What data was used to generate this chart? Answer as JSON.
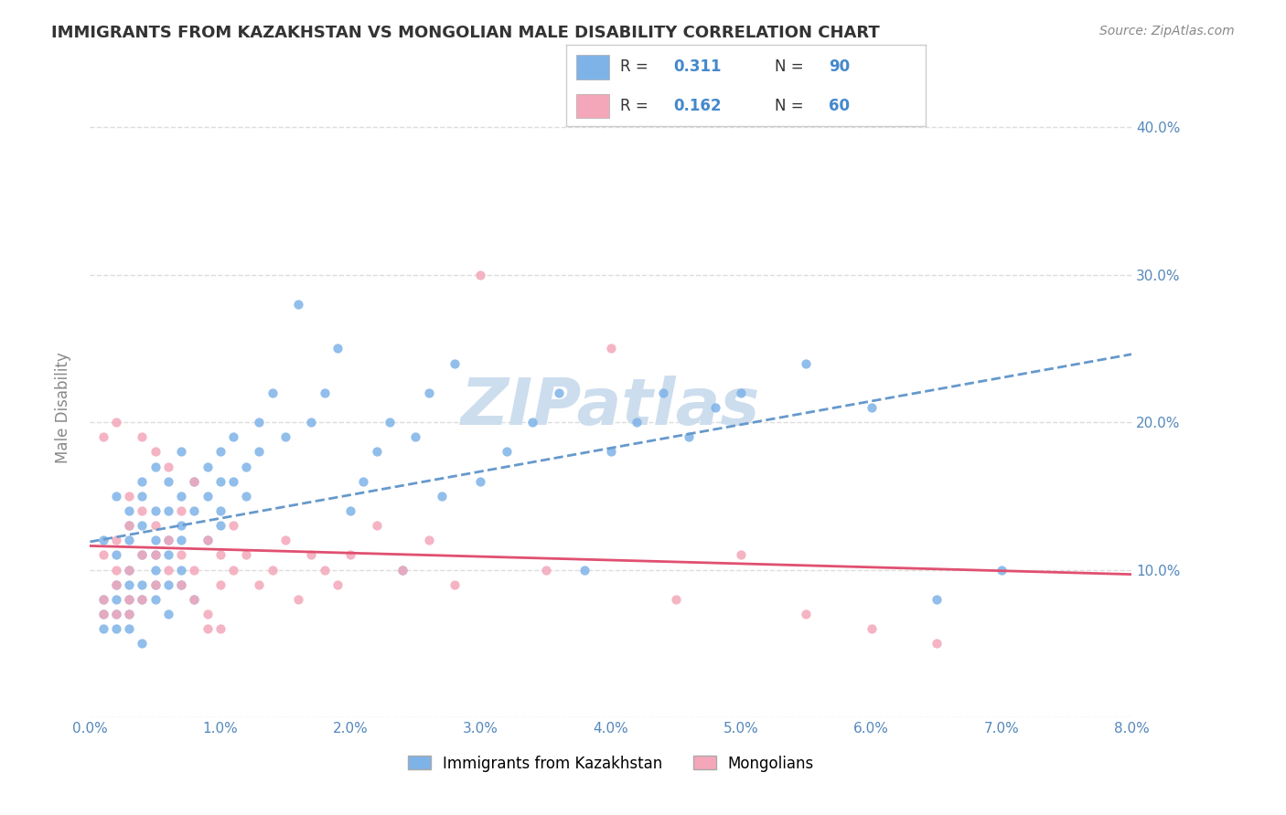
{
  "title": "IMMIGRANTS FROM KAZAKHSTAN VS MONGOLIAN MALE DISABILITY CORRELATION CHART",
  "source_text": "Source: ZipAtlas.com",
  "xlabel_bottom": "",
  "ylabel": "Male Disability",
  "legend_label1": "Immigrants from Kazakhstan",
  "legend_label2": "Mongolians",
  "R1": 0.311,
  "N1": 90,
  "R2": 0.162,
  "N2": 60,
  "xlim": [
    0.0,
    0.08
  ],
  "ylim": [
    0.0,
    0.42
  ],
  "x_ticks": [
    0.0,
    0.01,
    0.02,
    0.03,
    0.04,
    0.05,
    0.06,
    0.07,
    0.08
  ],
  "x_tick_labels": [
    "0.0%",
    "1.0%",
    "2.0%",
    "3.0%",
    "4.0%",
    "5.0%",
    "6.0%",
    "7.0%",
    "8.0%"
  ],
  "y_ticks": [
    0.0,
    0.1,
    0.2,
    0.3,
    0.4
  ],
  "y_tick_labels": [
    "",
    "10.0%",
    "20.0%",
    "30.0%",
    "40.0%"
  ],
  "color1": "#7EB3E8",
  "color2": "#F4A7B9",
  "trendline1_color": "#6699CC",
  "trendline2_color": "#E05070",
  "watermark_color": "#CCDDEE",
  "title_color": "#333333",
  "axis_label_color": "#5588BB",
  "grid_color": "#DDDDDD",
  "background_color": "#FFFFFF",
  "seed1": 42,
  "seed2": 99,
  "scatter1_x": [
    0.001,
    0.001,
    0.001,
    0.002,
    0.002,
    0.002,
    0.002,
    0.002,
    0.003,
    0.003,
    0.003,
    0.003,
    0.003,
    0.003,
    0.003,
    0.004,
    0.004,
    0.004,
    0.004,
    0.004,
    0.004,
    0.005,
    0.005,
    0.005,
    0.005,
    0.005,
    0.005,
    0.006,
    0.006,
    0.006,
    0.006,
    0.006,
    0.007,
    0.007,
    0.007,
    0.007,
    0.007,
    0.008,
    0.008,
    0.009,
    0.009,
    0.009,
    0.01,
    0.01,
    0.01,
    0.01,
    0.011,
    0.011,
    0.012,
    0.012,
    0.013,
    0.013,
    0.014,
    0.015,
    0.016,
    0.017,
    0.018,
    0.019,
    0.02,
    0.021,
    0.022,
    0.023,
    0.024,
    0.025,
    0.026,
    0.027,
    0.028,
    0.03,
    0.032,
    0.034,
    0.036,
    0.038,
    0.04,
    0.042,
    0.044,
    0.046,
    0.048,
    0.05,
    0.055,
    0.06,
    0.065,
    0.07,
    0.001,
    0.002,
    0.003,
    0.004,
    0.005,
    0.006,
    0.007,
    0.008
  ],
  "scatter1_y": [
    0.08,
    0.12,
    0.07,
    0.09,
    0.15,
    0.11,
    0.08,
    0.06,
    0.13,
    0.1,
    0.08,
    0.14,
    0.07,
    0.09,
    0.12,
    0.16,
    0.11,
    0.09,
    0.13,
    0.08,
    0.15,
    0.1,
    0.14,
    0.12,
    0.09,
    0.17,
    0.11,
    0.14,
    0.12,
    0.09,
    0.16,
    0.11,
    0.15,
    0.13,
    0.1,
    0.12,
    0.18,
    0.16,
    0.14,
    0.15,
    0.17,
    0.12,
    0.16,
    0.14,
    0.18,
    0.13,
    0.16,
    0.19,
    0.15,
    0.17,
    0.18,
    0.2,
    0.22,
    0.19,
    0.28,
    0.2,
    0.22,
    0.25,
    0.14,
    0.16,
    0.18,
    0.2,
    0.1,
    0.19,
    0.22,
    0.15,
    0.24,
    0.16,
    0.18,
    0.2,
    0.22,
    0.1,
    0.18,
    0.2,
    0.22,
    0.19,
    0.21,
    0.22,
    0.24,
    0.21,
    0.08,
    0.1,
    0.06,
    0.07,
    0.06,
    0.05,
    0.08,
    0.07,
    0.09,
    0.08
  ],
  "scatter2_x": [
    0.001,
    0.001,
    0.001,
    0.002,
    0.002,
    0.002,
    0.002,
    0.003,
    0.003,
    0.003,
    0.003,
    0.004,
    0.004,
    0.004,
    0.005,
    0.005,
    0.005,
    0.006,
    0.006,
    0.007,
    0.007,
    0.008,
    0.008,
    0.009,
    0.009,
    0.01,
    0.01,
    0.011,
    0.011,
    0.012,
    0.013,
    0.014,
    0.015,
    0.016,
    0.017,
    0.018,
    0.019,
    0.02,
    0.022,
    0.024,
    0.026,
    0.028,
    0.03,
    0.035,
    0.04,
    0.045,
    0.05,
    0.055,
    0.06,
    0.065,
    0.001,
    0.002,
    0.003,
    0.004,
    0.005,
    0.006,
    0.007,
    0.008,
    0.009,
    0.01
  ],
  "scatter2_y": [
    0.07,
    0.11,
    0.08,
    0.1,
    0.07,
    0.12,
    0.09,
    0.08,
    0.13,
    0.1,
    0.07,
    0.11,
    0.08,
    0.14,
    0.09,
    0.13,
    0.11,
    0.1,
    0.12,
    0.11,
    0.09,
    0.1,
    0.08,
    0.12,
    0.07,
    0.11,
    0.09,
    0.1,
    0.13,
    0.11,
    0.09,
    0.1,
    0.12,
    0.08,
    0.11,
    0.1,
    0.09,
    0.11,
    0.13,
    0.1,
    0.12,
    0.09,
    0.3,
    0.1,
    0.25,
    0.08,
    0.11,
    0.07,
    0.06,
    0.05,
    0.19,
    0.2,
    0.15,
    0.19,
    0.18,
    0.17,
    0.14,
    0.16,
    0.06,
    0.06
  ]
}
